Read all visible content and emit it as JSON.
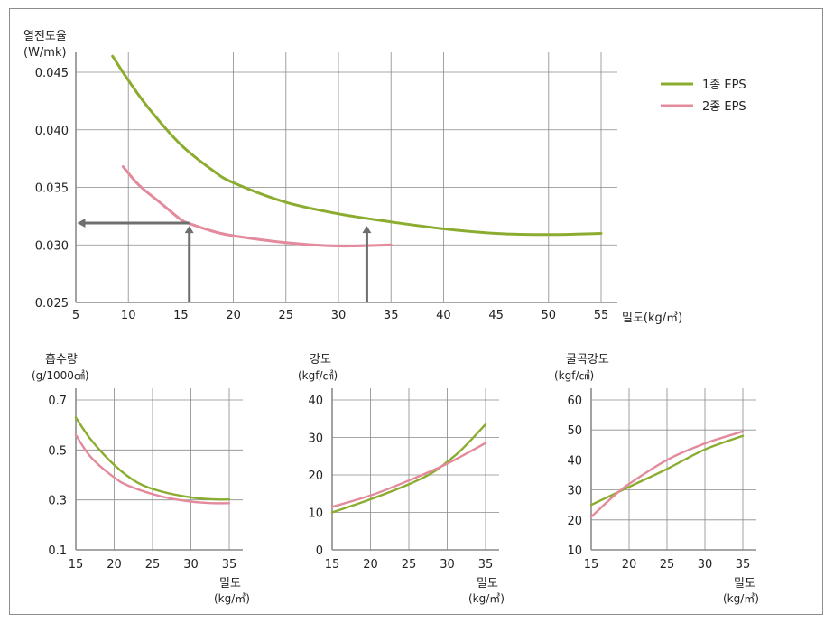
{
  "colors": {
    "green": "#8bac2f",
    "pink": "#e48a9d",
    "arrow": "#6f6f6f",
    "grid": "#8a8a8a"
  },
  "chart_data": [
    {
      "type": "line",
      "ylabel_line1": "열전도율",
      "ylabel_line2": "(W/mk)",
      "xlabel": "밀도(kg/㎥)",
      "xlim": [
        5,
        55
      ],
      "ylim": [
        0.025,
        0.045
      ],
      "x_ticks": [
        5,
        10,
        15,
        20,
        25,
        30,
        35,
        40,
        45,
        50,
        55
      ],
      "y_ticks": [
        "0.025",
        "0.030",
        "0.035",
        "0.040",
        "0.045"
      ],
      "legend_position": "top-right",
      "series": [
        {
          "name": "1종 EPS",
          "color": "green",
          "points": [
            [
              8.5,
              0.0464
            ],
            [
              10,
              0.0443
            ],
            [
              12,
              0.0418
            ],
            [
              15,
              0.0387
            ],
            [
              18,
              0.0365
            ],
            [
              20,
              0.0354
            ],
            [
              25,
              0.0337
            ],
            [
              30,
              0.0327
            ],
            [
              35,
              0.032
            ],
            [
              40,
              0.0314
            ],
            [
              45,
              0.031
            ],
            [
              50,
              0.0309
            ],
            [
              55,
              0.031
            ]
          ]
        },
        {
          "name": "2종 EPS",
          "color": "pink",
          "points": [
            [
              9.5,
              0.0368
            ],
            [
              11,
              0.0352
            ],
            [
              13,
              0.0337
            ],
            [
              15,
              0.0322
            ],
            [
              16,
              0.0318
            ],
            [
              18,
              0.0312
            ],
            [
              20,
              0.0308
            ],
            [
              25,
              0.0302
            ],
            [
              30,
              0.0299
            ],
            [
              35,
              0.03
            ]
          ]
        }
      ],
      "annotations": [
        {
          "type": "arrow-up",
          "x": 15.8,
          "y_to": 0.0315
        },
        {
          "type": "arrow-up",
          "x": 32.7,
          "y_to": 0.0315
        },
        {
          "type": "arrow-left",
          "y": 0.0319,
          "x_from": 15.8,
          "x_to": 5.3
        }
      ]
    },
    {
      "type": "line",
      "ylabel_line1": "흡수량",
      "ylabel_line2": "(g/1000㎠)",
      "xlabel_line1": "밀도",
      "xlabel_line2": "(kg/㎥)",
      "xlim": [
        15,
        35
      ],
      "ylim": [
        0.1,
        0.7
      ],
      "x_ticks": [
        "15",
        "20",
        "25",
        "30",
        "35"
      ],
      "y_ticks": [
        "0.1",
        "0.3",
        "0.5",
        "0.7"
      ],
      "series": [
        {
          "color": "green",
          "points": [
            [
              15,
              0.63
            ],
            [
              17,
              0.54
            ],
            [
              20,
              0.44
            ],
            [
              23,
              0.37
            ],
            [
              26,
              0.335
            ],
            [
              30,
              0.31
            ],
            [
              33,
              0.302
            ],
            [
              35,
              0.302
            ]
          ]
        },
        {
          "color": "pink",
          "points": [
            [
              15,
              0.56
            ],
            [
              17,
              0.47
            ],
            [
              20,
              0.39
            ],
            [
              22,
              0.355
            ],
            [
              26,
              0.315
            ],
            [
              30,
              0.293
            ],
            [
              33,
              0.287
            ],
            [
              35,
              0.287
            ]
          ]
        }
      ]
    },
    {
      "type": "line",
      "ylabel_line1": "강도",
      "ylabel_line2": "(kgf/㎠)",
      "xlabel_line1": "밀도",
      "xlabel_line2": "(kg/㎥)",
      "xlim": [
        15,
        35
      ],
      "ylim": [
        0,
        40
      ],
      "x_ticks": [
        "15",
        "20",
        "25",
        "30",
        "35"
      ],
      "y_ticks": [
        "0",
        "10",
        "20",
        "30",
        "40"
      ],
      "series": [
        {
          "color": "green",
          "points": [
            [
              15,
              10
            ],
            [
              20,
              13.5
            ],
            [
              25,
              17.5
            ],
            [
              28,
              20.5
            ],
            [
              30,
              23.5
            ],
            [
              32,
              27
            ],
            [
              35,
              33.5
            ]
          ]
        },
        {
          "color": "pink",
          "points": [
            [
              15,
              11.5
            ],
            [
              20,
              14.5
            ],
            [
              25,
              18.5
            ],
            [
              30,
              23
            ],
            [
              35,
              28.5
            ]
          ]
        }
      ]
    },
    {
      "type": "line",
      "ylabel_line1": "굴곡강도",
      "ylabel_line2": "(kgf/㎠)",
      "xlabel_line1": "밀도",
      "xlabel_line2": "(kg/㎥)",
      "xlim": [
        15,
        35
      ],
      "ylim": [
        10,
        60
      ],
      "x_ticks": [
        "15",
        "20",
        "25",
        "30",
        "35"
      ],
      "y_ticks": [
        "10",
        "20",
        "30",
        "40",
        "50",
        "60"
      ],
      "series": [
        {
          "color": "green",
          "points": [
            [
              15,
              25
            ],
            [
              20,
              31
            ],
            [
              25,
              37
            ],
            [
              30,
              43.5
            ],
            [
              35,
              48
            ]
          ]
        },
        {
          "color": "pink",
          "points": [
            [
              15,
              21
            ],
            [
              18,
              28
            ],
            [
              20,
              32
            ],
            [
              25,
              40
            ],
            [
              30,
              45.5
            ],
            [
              35,
              49.5
            ]
          ]
        }
      ]
    }
  ]
}
